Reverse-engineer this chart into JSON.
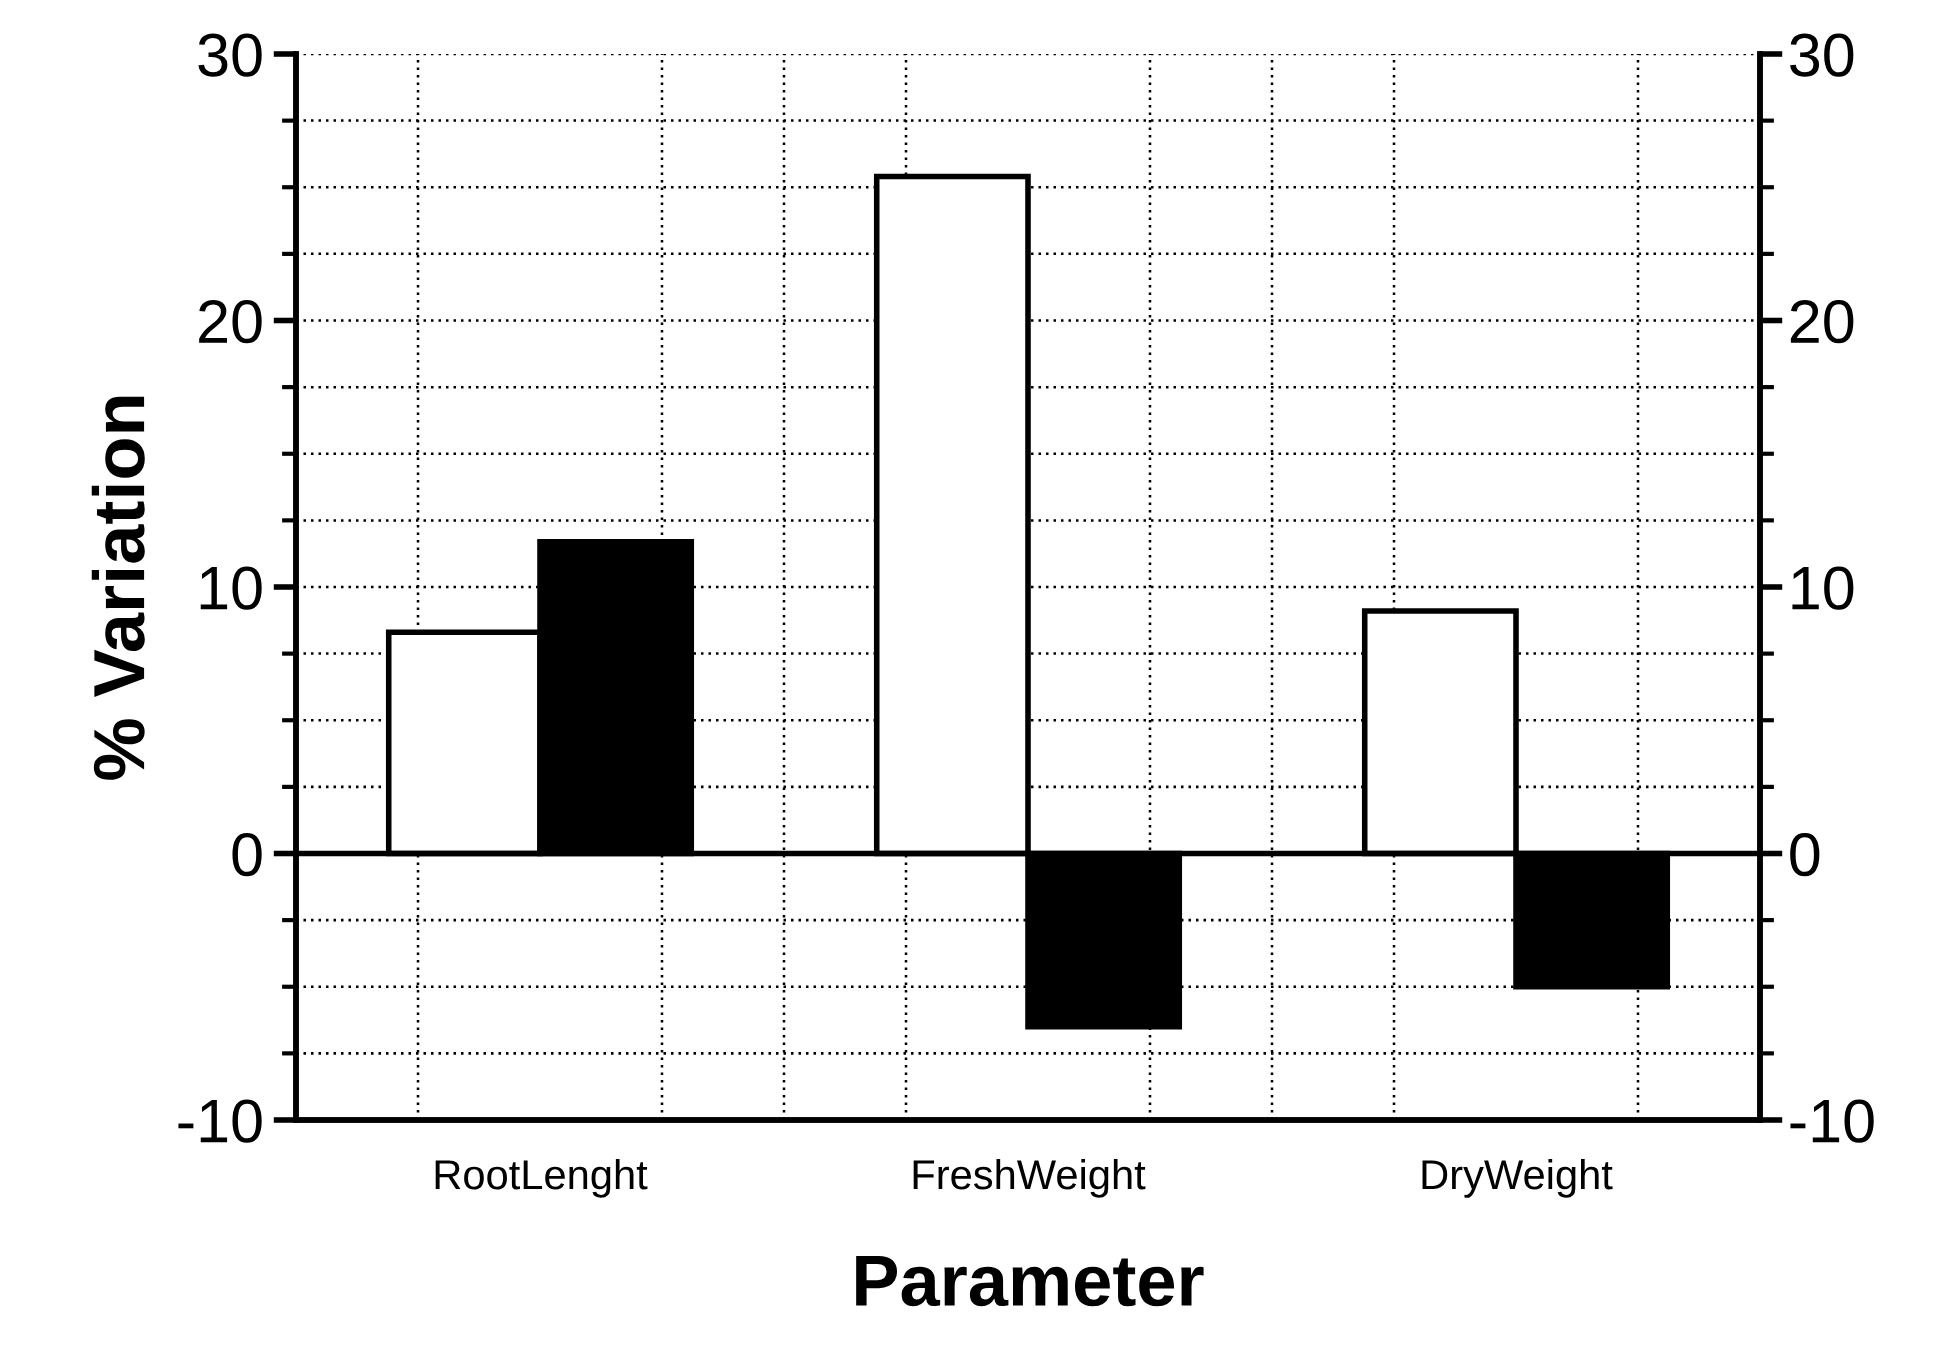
{
  "chart_data": {
    "type": "bar",
    "xlabel": "Parameter",
    "ylabel": "% Variation",
    "categories": [
      "RootLenght",
      "FreshWeight",
      "DryWeight"
    ],
    "series": [
      {
        "color": "#ffffff",
        "values": [
          8.3,
          25.4,
          9.1
        ]
      },
      {
        "color": "#000000",
        "values": [
          11.7,
          -6.5,
          -5.0
        ]
      }
    ],
    "ylim": [
      -10,
      30
    ],
    "yticks": [
      -10,
      0,
      10,
      20,
      30
    ],
    "y2lim": [
      -10,
      30
    ],
    "y2ticks": [
      -10,
      0,
      10,
      20,
      30
    ],
    "ref_lines": [
      {
        "axis": "y",
        "value": 0,
        "color": "#000000"
      }
    ],
    "grid": true
  }
}
